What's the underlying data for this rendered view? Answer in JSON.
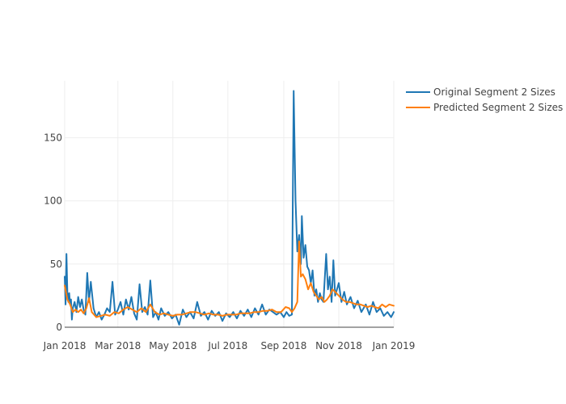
{
  "chart_data": {
    "type": "line",
    "x_axis": {
      "type": "date",
      "range": [
        "2018-01-01",
        "2019-01-01"
      ],
      "tick_labels": [
        {
          "value": "2018-01-01",
          "label": "Jan 2018"
        },
        {
          "value": "2018-03-01",
          "label": "Mar 2018"
        },
        {
          "value": "2018-05-01",
          "label": "May 2018"
        },
        {
          "value": "2018-07-01",
          "label": "Jul 2018"
        },
        {
          "value": "2018-09-01",
          "label": "Sep 2018"
        },
        {
          "value": "2018-11-01",
          "label": "Nov 2018"
        },
        {
          "value": "2019-01-01",
          "label": "Jan 2019"
        }
      ]
    },
    "y_axis": {
      "range": [
        0,
        195
      ],
      "tick_labels": [
        {
          "value": 0,
          "label": "0"
        },
        {
          "value": 50,
          "label": "50"
        },
        {
          "value": 100,
          "label": "100"
        },
        {
          "value": 150,
          "label": "150"
        }
      ]
    },
    "grid": true,
    "legend_placement": "top-right",
    "series": [
      {
        "name": "Original Segment 2 Sizes",
        "color": "#1f77b4",
        "points": [
          [
            "2018-01-01",
            40
          ],
          [
            "2018-01-02",
            18
          ],
          [
            "2018-01-03",
            58
          ],
          [
            "2018-01-04",
            28
          ],
          [
            "2018-01-05",
            20
          ],
          [
            "2018-01-06",
            27
          ],
          [
            "2018-01-07",
            18
          ],
          [
            "2018-01-08",
            22
          ],
          [
            "2018-01-09",
            6
          ],
          [
            "2018-01-10",
            15
          ],
          [
            "2018-01-12",
            20
          ],
          [
            "2018-01-14",
            12
          ],
          [
            "2018-01-16",
            24
          ],
          [
            "2018-01-18",
            16
          ],
          [
            "2018-01-20",
            22
          ],
          [
            "2018-01-22",
            14
          ],
          [
            "2018-01-24",
            10
          ],
          [
            "2018-01-26",
            43
          ],
          [
            "2018-01-28",
            20
          ],
          [
            "2018-01-30",
            36
          ],
          [
            "2018-02-02",
            15
          ],
          [
            "2018-02-05",
            8
          ],
          [
            "2018-02-08",
            12
          ],
          [
            "2018-02-11",
            6
          ],
          [
            "2018-02-14",
            10
          ],
          [
            "2018-02-17",
            15
          ],
          [
            "2018-02-20",
            12
          ],
          [
            "2018-02-23",
            36
          ],
          [
            "2018-02-26",
            10
          ],
          [
            "2018-03-01",
            14
          ],
          [
            "2018-03-04",
            20
          ],
          [
            "2018-03-07",
            10
          ],
          [
            "2018-03-10",
            22
          ],
          [
            "2018-03-13",
            14
          ],
          [
            "2018-03-16",
            24
          ],
          [
            "2018-03-19",
            11
          ],
          [
            "2018-03-22",
            6
          ],
          [
            "2018-03-25",
            34
          ],
          [
            "2018-03-28",
            12
          ],
          [
            "2018-03-31",
            16
          ],
          [
            "2018-04-03",
            10
          ],
          [
            "2018-04-06",
            37
          ],
          [
            "2018-04-09",
            8
          ],
          [
            "2018-04-12",
            12
          ],
          [
            "2018-04-15",
            6
          ],
          [
            "2018-04-18",
            15
          ],
          [
            "2018-04-22",
            9
          ],
          [
            "2018-04-26",
            12
          ],
          [
            "2018-04-30",
            7
          ],
          [
            "2018-05-04",
            10
          ],
          [
            "2018-05-08",
            2
          ],
          [
            "2018-05-12",
            14
          ],
          [
            "2018-05-16",
            8
          ],
          [
            "2018-05-20",
            12
          ],
          [
            "2018-05-24",
            7
          ],
          [
            "2018-05-28",
            20
          ],
          [
            "2018-06-01",
            9
          ],
          [
            "2018-06-05",
            12
          ],
          [
            "2018-06-09",
            6
          ],
          [
            "2018-06-13",
            13
          ],
          [
            "2018-06-17",
            9
          ],
          [
            "2018-06-21",
            12
          ],
          [
            "2018-06-25",
            5
          ],
          [
            "2018-06-29",
            11
          ],
          [
            "2018-07-03",
            8
          ],
          [
            "2018-07-07",
            12
          ],
          [
            "2018-07-11",
            7
          ],
          [
            "2018-07-15",
            13
          ],
          [
            "2018-07-19",
            9
          ],
          [
            "2018-07-23",
            14
          ],
          [
            "2018-07-27",
            8
          ],
          [
            "2018-07-31",
            15
          ],
          [
            "2018-08-04",
            10
          ],
          [
            "2018-08-08",
            18
          ],
          [
            "2018-08-12",
            10
          ],
          [
            "2018-08-16",
            14
          ],
          [
            "2018-08-20",
            12
          ],
          [
            "2018-08-24",
            10
          ],
          [
            "2018-08-28",
            12
          ],
          [
            "2018-09-01",
            8
          ],
          [
            "2018-09-04",
            12
          ],
          [
            "2018-09-07",
            9
          ],
          [
            "2018-09-10",
            10
          ],
          [
            "2018-09-12",
            187
          ],
          [
            "2018-09-14",
            100
          ],
          [
            "2018-09-16",
            60
          ],
          [
            "2018-09-18",
            73
          ],
          [
            "2018-09-20",
            50
          ],
          [
            "2018-09-21",
            88
          ],
          [
            "2018-09-23",
            55
          ],
          [
            "2018-09-25",
            65
          ],
          [
            "2018-09-27",
            48
          ],
          [
            "2018-09-29",
            45
          ],
          [
            "2018-10-01",
            35
          ],
          [
            "2018-10-03",
            45
          ],
          [
            "2018-10-05",
            25
          ],
          [
            "2018-10-07",
            30
          ],
          [
            "2018-10-09",
            20
          ],
          [
            "2018-10-11",
            27
          ],
          [
            "2018-10-13",
            22
          ],
          [
            "2018-10-15",
            20
          ],
          [
            "2018-10-18",
            58
          ],
          [
            "2018-10-20",
            30
          ],
          [
            "2018-10-22",
            40
          ],
          [
            "2018-10-24",
            20
          ],
          [
            "2018-10-26",
            53
          ],
          [
            "2018-10-28",
            25
          ],
          [
            "2018-11-01",
            35
          ],
          [
            "2018-11-04",
            20
          ],
          [
            "2018-11-07",
            28
          ],
          [
            "2018-11-10",
            18
          ],
          [
            "2018-11-14",
            24
          ],
          [
            "2018-11-18",
            15
          ],
          [
            "2018-11-22",
            21
          ],
          [
            "2018-11-26",
            12
          ],
          [
            "2018-12-01",
            18
          ],
          [
            "2018-12-05",
            10
          ],
          [
            "2018-12-09",
            20
          ],
          [
            "2018-12-13",
            12
          ],
          [
            "2018-12-17",
            15
          ],
          [
            "2018-12-21",
            9
          ],
          [
            "2018-12-25",
            12
          ],
          [
            "2018-12-29",
            8
          ],
          [
            "2019-01-01",
            12
          ]
        ]
      },
      {
        "name": "Predicted Segment 2 Sizes",
        "color": "#ff7f0e",
        "points": [
          [
            "2018-01-01",
            33
          ],
          [
            "2018-01-04",
            22
          ],
          [
            "2018-01-07",
            18
          ],
          [
            "2018-01-10",
            12
          ],
          [
            "2018-01-13",
            14
          ],
          [
            "2018-01-16",
            12
          ],
          [
            "2018-01-19",
            14
          ],
          [
            "2018-01-22",
            11
          ],
          [
            "2018-01-25",
            15
          ],
          [
            "2018-01-28",
            23
          ],
          [
            "2018-01-31",
            12
          ],
          [
            "2018-02-05",
            8
          ],
          [
            "2018-02-10",
            9
          ],
          [
            "2018-02-15",
            10
          ],
          [
            "2018-02-20",
            9
          ],
          [
            "2018-02-25",
            12
          ],
          [
            "2018-03-02",
            11
          ],
          [
            "2018-03-07",
            14
          ],
          [
            "2018-03-12",
            16
          ],
          [
            "2018-03-17",
            14
          ],
          [
            "2018-03-22",
            12
          ],
          [
            "2018-03-27",
            15
          ],
          [
            "2018-04-01",
            12
          ],
          [
            "2018-04-06",
            18
          ],
          [
            "2018-04-11",
            12
          ],
          [
            "2018-04-16",
            10
          ],
          [
            "2018-04-21",
            11
          ],
          [
            "2018-04-26",
            10
          ],
          [
            "2018-05-01",
            9
          ],
          [
            "2018-05-06",
            10
          ],
          [
            "2018-05-11",
            10
          ],
          [
            "2018-05-16",
            11
          ],
          [
            "2018-05-21",
            12
          ],
          [
            "2018-05-26",
            12
          ],
          [
            "2018-05-31",
            11
          ],
          [
            "2018-06-05",
            10
          ],
          [
            "2018-06-10",
            11
          ],
          [
            "2018-06-15",
            10
          ],
          [
            "2018-06-20",
            10
          ],
          [
            "2018-06-25",
            9
          ],
          [
            "2018-06-30",
            10
          ],
          [
            "2018-07-05",
            10
          ],
          [
            "2018-07-10",
            10
          ],
          [
            "2018-07-15",
            11
          ],
          [
            "2018-07-20",
            11
          ],
          [
            "2018-07-25",
            11
          ],
          [
            "2018-07-30",
            12
          ],
          [
            "2018-08-04",
            12
          ],
          [
            "2018-08-09",
            13
          ],
          [
            "2018-08-14",
            13
          ],
          [
            "2018-08-19",
            14
          ],
          [
            "2018-08-24",
            12
          ],
          [
            "2018-08-29",
            12
          ],
          [
            "2018-09-03",
            16
          ],
          [
            "2018-09-07",
            15
          ],
          [
            "2018-09-10",
            12
          ],
          [
            "2018-09-13",
            15
          ],
          [
            "2018-09-16",
            20
          ],
          [
            "2018-09-18",
            68
          ],
          [
            "2018-09-20",
            40
          ],
          [
            "2018-09-22",
            42
          ],
          [
            "2018-09-25",
            38
          ],
          [
            "2018-09-28",
            30
          ],
          [
            "2018-10-01",
            35
          ],
          [
            "2018-10-04",
            28
          ],
          [
            "2018-10-07",
            25
          ],
          [
            "2018-10-10",
            22
          ],
          [
            "2018-10-13",
            24
          ],
          [
            "2018-10-16",
            20
          ],
          [
            "2018-10-19",
            22
          ],
          [
            "2018-10-22",
            25
          ],
          [
            "2018-10-25",
            30
          ],
          [
            "2018-10-28",
            28
          ],
          [
            "2018-11-01",
            25
          ],
          [
            "2018-11-05",
            22
          ],
          [
            "2018-11-09",
            20
          ],
          [
            "2018-11-13",
            20
          ],
          [
            "2018-11-17",
            19
          ],
          [
            "2018-11-21",
            18
          ],
          [
            "2018-11-25",
            18
          ],
          [
            "2018-11-29",
            17
          ],
          [
            "2018-12-03",
            16
          ],
          [
            "2018-12-07",
            17
          ],
          [
            "2018-12-11",
            16
          ],
          [
            "2018-12-15",
            15
          ],
          [
            "2018-12-19",
            18
          ],
          [
            "2018-12-23",
            16
          ],
          [
            "2018-12-27",
            18
          ],
          [
            "2019-01-01",
            17
          ]
        ]
      }
    ]
  }
}
